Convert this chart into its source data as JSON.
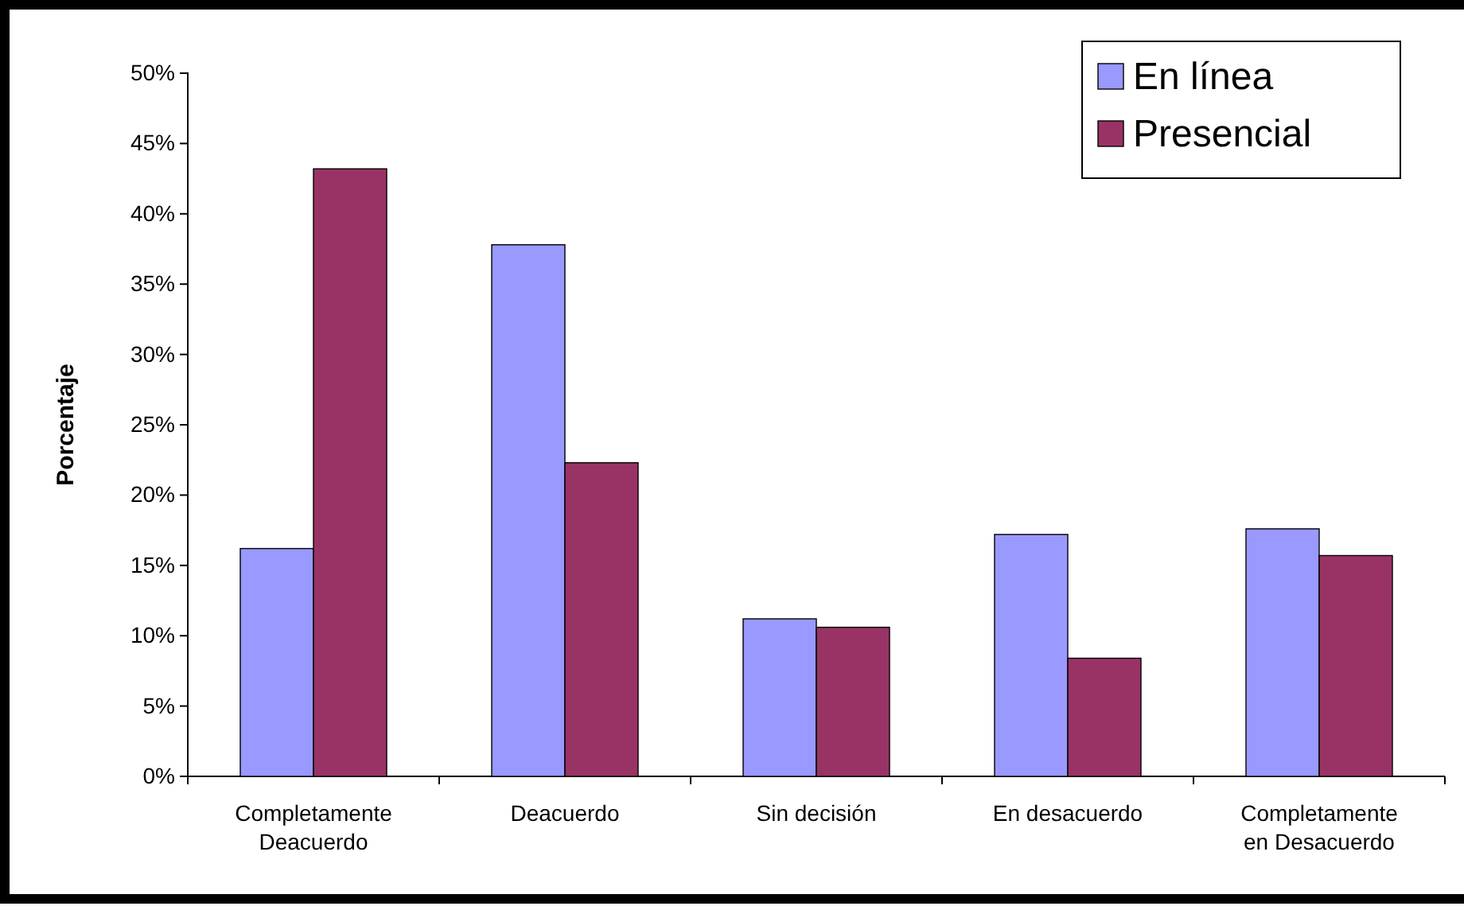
{
  "chart_data": {
    "type": "bar",
    "ylabel": "Porcentaje",
    "categories": [
      "Completamente Deacuerdo",
      "Deacuerdo",
      "Sin decisión",
      "En desacuerdo",
      "Completamente en Desacuerdo"
    ],
    "series": [
      {
        "name": "En línea",
        "color": "#9999ff",
        "values": [
          16.2,
          37.8,
          11.2,
          17.2,
          17.6
        ]
      },
      {
        "name": "Presencial",
        "color": "#993366",
        "values": [
          43.2,
          22.3,
          10.6,
          8.4,
          15.7
        ]
      }
    ],
    "ylim": [
      0,
      50
    ],
    "yticks": [
      {
        "value": 0,
        "label": "0%"
      },
      {
        "value": 5,
        "label": "5%"
      },
      {
        "value": 10,
        "label": "10%"
      },
      {
        "value": 15,
        "label": "15%"
      },
      {
        "value": 20,
        "label": "20%"
      },
      {
        "value": 25,
        "label": "25%"
      },
      {
        "value": 30,
        "label": "30%"
      },
      {
        "value": 35,
        "label": "35%"
      },
      {
        "value": 40,
        "label": "40%"
      },
      {
        "value": 45,
        "label": "45%"
      },
      {
        "value": 50,
        "label": "50%"
      }
    ],
    "grid": false,
    "legend": "top right"
  }
}
